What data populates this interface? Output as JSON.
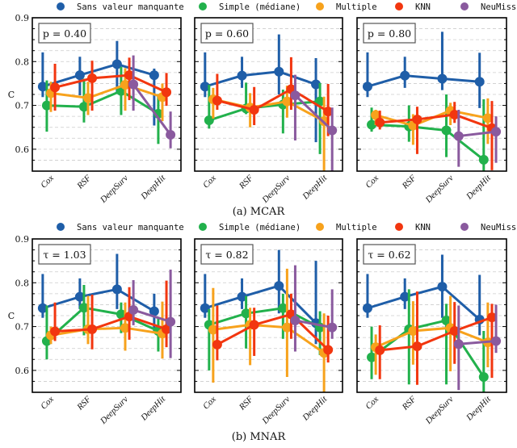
{
  "colors": {
    "Sans valeur manquante": "#1f5ea8",
    "Simple (médiane)": "#22b14c",
    "Multiple": "#f7a21c",
    "KNN": "#f2360f",
    "NeuMiss": "#8a5a9e"
  },
  "legend": [
    "Sans valeur manquante",
    "Simple (médiane)",
    "Multiple",
    "KNN",
    "NeuMiss"
  ],
  "captions": [
    "(a) MCAR",
    "(b) MNAR"
  ],
  "chart_data": [
    {
      "type": "line",
      "group": "MCAR",
      "panel_label": "p = 0.40",
      "ylabel": "C",
      "ylim": [
        0.55,
        0.9
      ],
      "yticks": [
        0.6,
        0.7,
        0.8,
        0.9
      ],
      "grid": true,
      "categories": [
        "Cox",
        "RSF",
        "DeepSurv",
        "DeepHit"
      ],
      "series": [
        {
          "name": "Sans valeur manquante",
          "values": [
            0.743,
            0.769,
            0.794,
            0.769
          ],
          "lo": [
            0.719,
            0.723,
            0.726,
            0.654
          ],
          "hi": [
            0.821,
            0.811,
            0.847,
            0.784
          ]
        },
        {
          "name": "Simple (médiane)",
          "values": [
            0.7,
            0.697,
            0.733,
            0.681
          ],
          "lo": [
            0.64,
            0.661,
            0.678,
            0.612
          ],
          "hi": [
            0.757,
            0.761,
            0.788,
            0.726
          ]
        },
        {
          "name": "Multiple",
          "values": [
            0.728,
            0.717,
            0.747,
            0.719
          ],
          "lo": [
            0.685,
            0.678,
            0.688,
            0.664
          ],
          "hi": [
            0.754,
            0.754,
            0.785,
            0.75
          ]
        },
        {
          "name": "KNN",
          "values": [
            0.741,
            0.762,
            0.769,
            0.73
          ],
          "lo": [
            0.688,
            0.688,
            0.712,
            0.699
          ],
          "hi": [
            0.795,
            0.802,
            0.809,
            0.774
          ]
        },
        {
          "name": "NeuMiss",
          "values": [
            null,
            null,
            0.748,
            0.633
          ],
          "lo": [
            null,
            null,
            0.688,
            0.602
          ],
          "hi": [
            null,
            null,
            0.814,
            0.686
          ]
        }
      ]
    },
    {
      "type": "line",
      "group": "MCAR",
      "panel_label": "p = 0.60",
      "ylim": [
        0.55,
        0.9
      ],
      "grid": true,
      "categories": [
        "Cox",
        "RSF",
        "DeepSurv",
        "DeepHit"
      ],
      "series": [
        {
          "name": "Sans valeur manquante",
          "values": [
            0.743,
            0.768,
            0.777,
            0.748
          ],
          "lo": [
            0.719,
            0.74,
            0.725,
            0.616
          ],
          "hi": [
            0.821,
            0.811,
            0.862,
            0.808
          ]
        },
        {
          "name": "Simple (médiane)",
          "values": [
            0.666,
            0.693,
            0.702,
            0.709
          ],
          "lo": [
            0.647,
            0.68,
            0.636,
            0.589
          ],
          "hi": [
            0.747,
            0.752,
            0.736,
            0.751
          ]
        },
        {
          "name": "Multiple",
          "values": [
            0.714,
            0.695,
            0.709,
            0.664
          ],
          "lo": [
            0.67,
            0.65,
            0.672,
            0.55
          ],
          "hi": [
            0.74,
            0.728,
            0.745,
            0.72
          ]
        },
        {
          "name": "KNN",
          "values": [
            0.711,
            0.69,
            0.737,
            0.686
          ],
          "lo": [
            0.69,
            0.655,
            0.69,
            0.63
          ],
          "hi": [
            0.772,
            0.742,
            0.81,
            0.749
          ]
        },
        {
          "name": "NeuMiss",
          "values": [
            null,
            null,
            0.723,
            0.643
          ],
          "lo": [
            null,
            null,
            0.62,
            0.55
          ],
          "hi": [
            null,
            null,
            0.77,
            0.695
          ]
        }
      ]
    },
    {
      "type": "line",
      "group": "MCAR",
      "panel_label": "p = 0.80",
      "ylim": [
        0.55,
        0.9
      ],
      "grid": true,
      "categories": [
        "Cox",
        "RSF",
        "DeepSurv",
        "DeepHit"
      ],
      "series": [
        {
          "name": "Sans valeur manquante",
          "values": [
            0.743,
            0.768,
            0.761,
            0.754
          ],
          "lo": [
            0.719,
            0.74,
            0.735,
            0.694
          ],
          "hi": [
            0.821,
            0.811,
            0.868,
            0.82
          ]
        },
        {
          "name": "Simple (médiane)",
          "values": [
            0.656,
            0.652,
            0.643,
            0.576
          ],
          "lo": [
            0.64,
            0.617,
            0.582,
            0.55
          ],
          "hi": [
            0.695,
            0.7,
            0.725,
            0.714
          ]
        },
        {
          "name": "Multiple",
          "values": [
            0.678,
            0.654,
            0.688,
            0.671
          ],
          "lo": [
            0.655,
            0.61,
            0.655,
            0.612
          ],
          "hi": [
            0.69,
            0.68,
            0.706,
            0.716
          ]
        },
        {
          "name": "KNN",
          "values": [
            0.661,
            0.668,
            0.679,
            0.648
          ],
          "lo": [
            0.645,
            0.589,
            0.66,
            0.552
          ],
          "hi": [
            0.688,
            0.697,
            0.708,
            0.71
          ]
        },
        {
          "name": "NeuMiss",
          "values": [
            null,
            null,
            0.63,
            0.64
          ],
          "lo": [
            null,
            null,
            0.56,
            0.569
          ],
          "hi": [
            null,
            null,
            0.69,
            0.675
          ]
        }
      ]
    },
    {
      "type": "line",
      "group": "MNAR",
      "panel_label": "τ = 1.03",
      "ylabel": "C",
      "ylim": [
        0.55,
        0.9
      ],
      "yticks": [
        0.6,
        0.7,
        0.8,
        0.9
      ],
      "grid": true,
      "categories": [
        "Cox",
        "RSF",
        "DeepSurv",
        "DeepHit"
      ],
      "series": [
        {
          "name": "Sans valeur manquante",
          "values": [
            0.742,
            0.768,
            0.785,
            0.735
          ],
          "lo": [
            0.72,
            0.74,
            0.74,
            0.69
          ],
          "hi": [
            0.82,
            0.81,
            0.866,
            0.775
          ]
        },
        {
          "name": "Simple (médiane)",
          "values": [
            0.667,
            0.743,
            0.728,
            0.69
          ],
          "lo": [
            0.625,
            0.68,
            0.685,
            0.643
          ],
          "hi": [
            0.748,
            0.795,
            0.755,
            0.72
          ]
        },
        {
          "name": "Multiple",
          "values": [
            0.68,
            0.694,
            0.697,
            0.684
          ],
          "lo": [
            0.66,
            0.66,
            0.645,
            0.627
          ],
          "hi": [
            0.7,
            0.77,
            0.755,
            0.757
          ]
        },
        {
          "name": "KNN",
          "values": [
            0.689,
            0.694,
            0.723,
            0.694
          ],
          "lo": [
            0.667,
            0.648,
            0.67,
            0.653
          ],
          "hi": [
            0.755,
            0.773,
            0.79,
            0.805
          ]
        },
        {
          "name": "NeuMiss",
          "values": [
            null,
            null,
            0.738,
            0.711
          ],
          "lo": [
            null,
            null,
            0.703,
            0.628
          ],
          "hi": [
            null,
            null,
            0.806,
            0.83
          ]
        }
      ]
    },
    {
      "type": "line",
      "group": "MNAR",
      "panel_label": "τ = 0.82",
      "ylim": [
        0.55,
        0.9
      ],
      "grid": true,
      "categories": [
        "Cox",
        "RSF",
        "DeepSurv",
        "DeepHit"
      ],
      "series": [
        {
          "name": "Sans valeur manquante",
          "values": [
            0.742,
            0.768,
            0.793,
            0.708
          ],
          "lo": [
            0.72,
            0.74,
            0.73,
            0.66
          ],
          "hi": [
            0.82,
            0.81,
            0.875,
            0.85
          ]
        },
        {
          "name": "Simple (médiane)",
          "values": [
            0.704,
            0.73,
            0.742,
            0.698
          ],
          "lo": [
            0.6,
            0.65,
            0.672,
            0.635
          ],
          "hi": [
            0.74,
            0.77,
            0.775,
            0.735
          ]
        },
        {
          "name": "Multiple",
          "values": [
            0.693,
            0.704,
            0.698,
            0.64
          ],
          "lo": [
            0.572,
            0.612,
            0.585,
            0.55
          ],
          "hi": [
            0.788,
            0.743,
            0.832,
            0.73
          ]
        },
        {
          "name": "KNN",
          "values": [
            0.659,
            0.704,
            0.728,
            0.647
          ],
          "lo": [
            0.623,
            0.633,
            0.672,
            0.618
          ],
          "hi": [
            0.748,
            0.743,
            0.775,
            0.725
          ]
        },
        {
          "name": "NeuMiss",
          "values": [
            null,
            null,
            0.714,
            0.698
          ],
          "lo": [
            null,
            null,
            0.643,
            0.672
          ],
          "hi": [
            null,
            null,
            0.84,
            0.785
          ]
        }
      ]
    },
    {
      "type": "line",
      "group": "MNAR",
      "panel_label": "τ = 0.62",
      "ylim": [
        0.55,
        0.9
      ],
      "grid": true,
      "categories": [
        "Cox",
        "RSF",
        "DeepSurv",
        "DeepHit"
      ],
      "series": [
        {
          "name": "Sans valeur manquante",
          "values": [
            0.742,
            0.768,
            0.791,
            0.716
          ],
          "lo": [
            0.72,
            0.74,
            0.72,
            0.68
          ],
          "hi": [
            0.82,
            0.81,
            0.864,
            0.818
          ]
        },
        {
          "name": "Simple (médiane)",
          "values": [
            0.63,
            0.694,
            0.714,
            0.585
          ],
          "lo": [
            0.58,
            0.568,
            0.568,
            0.55
          ],
          "hi": [
            0.7,
            0.785,
            0.752,
            0.69
          ]
        },
        {
          "name": "Multiple",
          "values": [
            0.653,
            0.69,
            0.697,
            0.664
          ],
          "lo": [
            0.59,
            0.613,
            0.598,
            0.607
          ],
          "hi": [
            0.682,
            0.758,
            0.77,
            0.755
          ]
        },
        {
          "name": "KNN",
          "values": [
            0.646,
            0.655,
            0.69,
            0.721
          ],
          "lo": [
            0.58,
            0.567,
            0.615,
            0.583
          ],
          "hi": [
            0.703,
            0.78,
            0.756,
            0.752
          ]
        },
        {
          "name": "NeuMiss",
          "values": [
            null,
            null,
            0.66,
            0.667
          ],
          "lo": [
            null,
            null,
            0.555,
            0.64
          ],
          "hi": [
            null,
            null,
            0.748,
            0.75
          ]
        }
      ]
    }
  ]
}
